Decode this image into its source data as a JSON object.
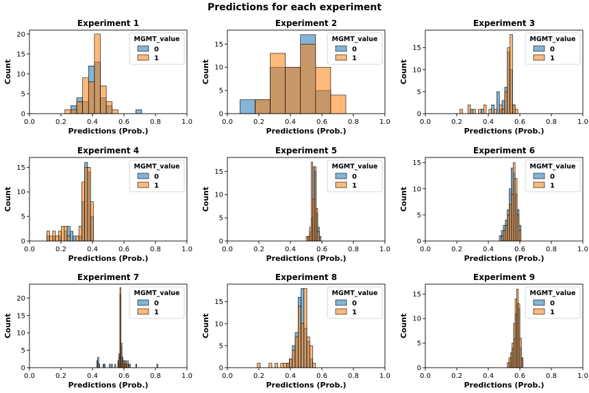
{
  "figure": {
    "suptitle": "Predictions for each experiment",
    "colors": {
      "class0": "#1f77b4",
      "class1": "#ff7f0e",
      "edge": "#000000"
    }
  },
  "chart_data": [
    {
      "type": "histogram",
      "title": "Experiment 1",
      "xlabel": "Predictions (Prob.)",
      "ylabel": "Count",
      "xlim": [
        0,
        1
      ],
      "ylim": [
        0,
        21
      ],
      "xticks": [
        "0.0",
        "0.2",
        "0.4",
        "0.6",
        "0.8",
        "1.0"
      ],
      "yticks": [
        "0",
        "5",
        "10",
        "15",
        "20"
      ],
      "legend": {
        "title": "MGMT_value",
        "position": "top-right",
        "entries": [
          "0",
          "1"
        ]
      },
      "bin_start": 0.225,
      "bin_width": 0.0375,
      "series": [
        {
          "name": "0",
          "values": [
            0,
            2,
            4,
            3,
            12,
            13,
            4,
            2,
            0,
            0,
            0,
            0,
            1
          ]
        },
        {
          "name": "1",
          "values": [
            1,
            1,
            3,
            9,
            8,
            20,
            7,
            3,
            1,
            0,
            0,
            0,
            0
          ]
        }
      ]
    },
    {
      "type": "histogram",
      "title": "Experiment 2",
      "xlabel": "Predictions (Prob.)",
      "ylabel": "Count",
      "xlim": [
        0,
        1
      ],
      "ylim": [
        0,
        18
      ],
      "xticks": [
        "0.0",
        "0.2",
        "0.4",
        "0.6",
        "0.8",
        "1.0"
      ],
      "yticks": [
        "0",
        "5",
        "10",
        "15"
      ],
      "legend": {
        "title": "MGMT_value",
        "position": "top-right",
        "entries": [
          "0",
          "1"
        ]
      },
      "bin_start": 0.08,
      "bin_width": 0.096,
      "series": [
        {
          "name": "0",
          "values": [
            3,
            3,
            10,
            10,
            17,
            5,
            0
          ]
        },
        {
          "name": "1",
          "values": [
            0,
            3,
            13,
            10,
            15,
            10,
            4
          ]
        }
      ]
    },
    {
      "type": "histogram",
      "title": "Experiment 3",
      "xlabel": "Predictions (Prob.)",
      "ylabel": "Count",
      "xlim": [
        0,
        1
      ],
      "ylim": [
        0,
        19
      ],
      "xticks": [
        "0.0",
        "0.2",
        "0.4",
        "0.6",
        "0.8",
        "1.0"
      ],
      "yticks": [
        "0",
        "5",
        "10",
        "15"
      ],
      "legend": {
        "title": "MGMT_value",
        "position": "top-right",
        "entries": [
          "0",
          "1"
        ]
      },
      "bin_start": 0.22,
      "bin_width": 0.0167,
      "series": [
        {
          "name": "0",
          "values": [
            0,
            0,
            0,
            0,
            1,
            0,
            0,
            0,
            1,
            0,
            0,
            0,
            2,
            0,
            5,
            1,
            3,
            6,
            14,
            10,
            2,
            0
          ]
        },
        {
          "name": "1",
          "values": [
            1,
            0,
            0,
            2,
            0,
            1,
            0,
            1,
            0,
            2,
            0,
            1,
            0,
            1,
            0,
            2,
            1,
            5,
            15,
            18,
            2,
            1
          ]
        }
      ]
    },
    {
      "type": "histogram",
      "title": "Experiment 4",
      "xlabel": "Predictions (Prob.)",
      "ylabel": "Count",
      "xlim": [
        0,
        1
      ],
      "ylim": [
        0,
        17
      ],
      "xticks": [
        "0.0",
        "0.2",
        "0.4",
        "0.6",
        "0.8",
        "1.0"
      ],
      "yticks": [
        "0",
        "5",
        "10",
        "15"
      ],
      "legend": {
        "title": "MGMT_value",
        "position": "top-right",
        "entries": [
          "0",
          "1"
        ]
      },
      "bin_start": 0.11,
      "bin_width": 0.0185,
      "series": [
        {
          "name": "0",
          "values": [
            1,
            0,
            1,
            0,
            1,
            0,
            2,
            3,
            2,
            1,
            0,
            1,
            8,
            16,
            14,
            5
          ]
        },
        {
          "name": "1",
          "values": [
            2,
            1,
            2,
            1,
            2,
            3,
            3,
            1,
            0,
            0,
            1,
            3,
            12,
            15,
            15,
            8
          ]
        }
      ]
    },
    {
      "type": "histogram",
      "title": "Experiment 5",
      "xlabel": "Predictions (Prob.)",
      "ylabel": "Count",
      "xlim": [
        0,
        1
      ],
      "ylim": [
        0,
        18
      ],
      "xticks": [
        "0.0",
        "0.2",
        "0.4",
        "0.6",
        "0.8",
        "1.0"
      ],
      "yticks": [
        "0",
        "5",
        "10",
        "15"
      ],
      "legend": {
        "title": "MGMT_value",
        "position": "top-right",
        "entries": [
          "0",
          "1"
        ]
      },
      "bin_start": 0.5,
      "bin_width": 0.0105,
      "series": [
        {
          "name": "0",
          "values": [
            0,
            1,
            2,
            5,
            16,
            15,
            6,
            3,
            1
          ]
        },
        {
          "name": "1",
          "values": [
            1,
            1,
            3,
            17,
            9,
            16,
            7,
            2,
            0
          ]
        }
      ]
    },
    {
      "type": "histogram",
      "title": "Experiment 6",
      "xlabel": "Predictions (Prob.)",
      "ylabel": "Count",
      "xlim": [
        0,
        1
      ],
      "ylim": [
        0,
        16
      ],
      "xticks": [
        "0.0",
        "0.2",
        "0.4",
        "0.6",
        "0.8",
        "1.0"
      ],
      "yticks": [
        "0",
        "5",
        "10",
        "15"
      ],
      "legend": {
        "title": "MGMT_value",
        "position": "top-right",
        "entries": [
          "0",
          "1"
        ]
      },
      "bin_start": 0.47,
      "bin_width": 0.0125,
      "series": [
        {
          "name": "0",
          "values": [
            1,
            2,
            3,
            4,
            6,
            10,
            14,
            13,
            9,
            6,
            3
          ]
        },
        {
          "name": "1",
          "values": [
            0,
            1,
            2,
            3,
            5,
            7,
            9,
            15,
            12,
            5,
            2
          ]
        }
      ]
    },
    {
      "type": "histogram",
      "title": "Experiment 7",
      "xlabel": "Predictions (Prob.)",
      "ylabel": "Count",
      "xlim": [
        0,
        1
      ],
      "ylim": [
        0,
        24
      ],
      "xticks": [
        "0.0",
        "0.2",
        "0.4",
        "0.6",
        "0.8",
        "1.0"
      ],
      "yticks": [
        "0",
        "5",
        "10",
        "15",
        "20"
      ],
      "legend": {
        "title": "MGMT_value",
        "position": "top-right",
        "entries": [
          "0",
          "1"
        ]
      },
      "bin_start": 0.42,
      "bin_width": 0.0067,
      "series": [
        {
          "name": "0",
          "values": [
            0,
            2,
            3,
            1,
            0,
            0,
            0,
            1,
            1,
            0,
            0,
            0,
            0,
            1,
            0,
            1,
            0,
            0,
            0,
            0,
            0,
            2,
            4,
            21,
            6,
            3,
            2,
            1,
            2,
            1,
            0,
            1,
            0,
            0,
            0,
            0,
            0,
            0,
            1,
            0,
            0,
            0,
            0,
            0,
            0,
            0,
            0,
            0,
            0,
            0,
            0,
            0,
            0,
            0,
            0,
            0,
            0,
            0,
            1
          ]
        },
        {
          "name": "1",
          "values": [
            0,
            0,
            1,
            0,
            0,
            0,
            0,
            0,
            0,
            0,
            0,
            0,
            0,
            0,
            0,
            0,
            0,
            0,
            1,
            0,
            0,
            1,
            3,
            23,
            7,
            2,
            1,
            2,
            1,
            1,
            2,
            0,
            1,
            0,
            0,
            0,
            0,
            0,
            0,
            0,
            0,
            0,
            0,
            0,
            0,
            0,
            0,
            0,
            0,
            0,
            0,
            0,
            0,
            0,
            0,
            0,
            0,
            0,
            0
          ]
        }
      ]
    },
    {
      "type": "histogram",
      "title": "Experiment 8",
      "xlabel": "Predictions (Prob.)",
      "ylabel": "Count",
      "xlim": [
        0,
        1
      ],
      "ylim": [
        0,
        19
      ],
      "xticks": [
        "0.0",
        "0.2",
        "0.4",
        "0.6",
        "0.8",
        "1.0"
      ],
      "yticks": [
        "0",
        "5",
        "10",
        "15"
      ],
      "legend": {
        "title": "MGMT_value",
        "position": "top-right",
        "entries": [
          "0",
          "1"
        ]
      },
      "bin_start": 0.19,
      "bin_width": 0.0185,
      "series": [
        {
          "name": "0",
          "values": [
            0,
            0,
            0,
            0,
            0,
            0,
            0,
            0,
            0,
            0,
            1,
            2,
            5,
            8,
            16,
            18,
            9,
            6,
            2,
            0
          ]
        },
        {
          "name": "1",
          "values": [
            1,
            0,
            0,
            0,
            1,
            0,
            1,
            0,
            1,
            1,
            1,
            2,
            4,
            7,
            14,
            10,
            18,
            7,
            5,
            1
          ]
        }
      ]
    },
    {
      "type": "histogram",
      "title": "Experiment 9",
      "xlabel": "Predictions (Prob.)",
      "ylabel": "Count",
      "xlim": [
        0,
        1
      ],
      "ylim": [
        0,
        17
      ],
      "xticks": [
        "0.0",
        "0.2",
        "0.4",
        "0.6",
        "0.8",
        "1.0"
      ],
      "yticks": [
        "0",
        "5",
        "10",
        "15"
      ],
      "legend": {
        "title": "MGMT_value",
        "position": "top-right",
        "entries": [
          "0",
          "1"
        ]
      },
      "bin_start": 0.52,
      "bin_width": 0.01,
      "series": [
        {
          "name": "0",
          "values": [
            0,
            1,
            2,
            4,
            6,
            11,
            13,
            12,
            4,
            2
          ]
        },
        {
          "name": "1",
          "values": [
            1,
            2,
            3,
            5,
            9,
            14,
            16,
            13,
            6,
            2
          ]
        }
      ]
    }
  ]
}
